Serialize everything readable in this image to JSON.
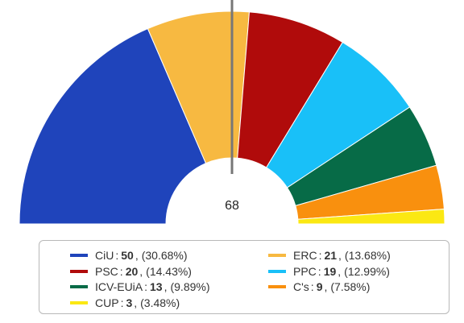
{
  "chart_data": {
    "type": "pie",
    "variant": "hemicycle",
    "center_label": "68",
    "majority_marker": true,
    "slices": [
      {
        "name": "CiU",
        "seats": 50,
        "percent": "(30.68%)",
        "color": "#1f44bb"
      },
      {
        "name": "ERC",
        "seats": 21,
        "percent": "(13.68%)",
        "color": "#f7b941"
      },
      {
        "name": "PSC",
        "seats": 20,
        "percent": "(14.43%)",
        "color": "#b00b0b"
      },
      {
        "name": "PPC",
        "seats": 19,
        "percent": "(12.99%)",
        "color": "#19c0f8"
      },
      {
        "name": "ICV-EUiA",
        "seats": 13,
        "percent": "(9.89%)",
        "color": "#076b47"
      },
      {
        "name": "C's",
        "seats": 9,
        "percent": "(7.58%)",
        "color": "#f9900e"
      },
      {
        "name": "CUP",
        "seats": 3,
        "percent": "(3.48%)",
        "color": "#fbe813"
      }
    ],
    "legend": {
      "placement": "bottom",
      "items": [
        {
          "name": "CiU",
          "seats": "50",
          "comma": ",",
          "percent": "(30.68%)"
        },
        {
          "name": "ERC",
          "seats": "21",
          "comma": ",",
          "percent": "(13.68%)"
        },
        {
          "name": "PSC",
          "seats": "20",
          "comma": ",",
          "percent": "(14.43%)"
        },
        {
          "name": "PPC",
          "seats": "19",
          "comma": ",",
          "percent": "(12.99%)"
        },
        {
          "name": "ICV-EUiA",
          "seats": "13",
          "comma": ",",
          "percent": "(9.89%)"
        },
        {
          "name": "C's",
          "seats": "9",
          "comma": ",",
          "percent": "(7.58%)"
        },
        {
          "name": "CUP",
          "seats": "3",
          "comma": ",",
          "percent": "(3.48%)"
        }
      ]
    }
  }
}
